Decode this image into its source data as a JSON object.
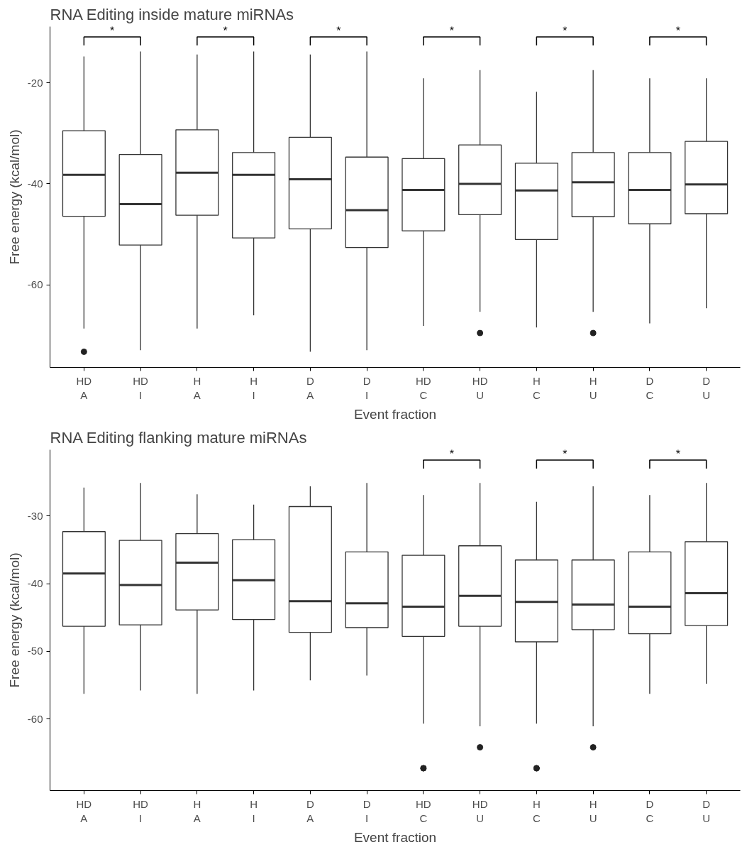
{
  "chart_data": [
    {
      "type": "box",
      "title": "RNA Editing inside mature miRNAs",
      "xlabel": "Event fraction",
      "ylabel": "Free energy (kcal/mol)",
      "categories": [
        "HD\nA",
        "HD\nI",
        "H\nA",
        "H\nI",
        "D\nA",
        "D\nI",
        "HD\nC",
        "HD\nU",
        "H\nC",
        "H\nU",
        "D\nC",
        "D\nU"
      ],
      "boxes": [
        {
          "low": -68.6,
          "q1": -46.4,
          "median": -38.2,
          "q3": -29.5,
          "high": -14.8,
          "outliers": [
            -73.2
          ]
        },
        {
          "low": -72.9,
          "q1": -52.1,
          "median": -44.0,
          "q3": -34.2,
          "high": -13.8
        },
        {
          "low": -68.6,
          "q1": -46.2,
          "median": -37.8,
          "q3": -29.3,
          "high": -14.4
        },
        {
          "low": -66.0,
          "q1": -50.7,
          "median": -38.2,
          "q3": -33.8,
          "high": -13.8
        },
        {
          "low": -73.2,
          "q1": -48.9,
          "median": -39.1,
          "q3": -30.8,
          "high": -14.4
        },
        {
          "low": -72.9,
          "q1": -52.6,
          "median": -45.2,
          "q3": -34.7,
          "high": -13.8
        },
        {
          "low": -68.1,
          "q1": -49.3,
          "median": -41.2,
          "q3": -35.0,
          "high": -19.1
        },
        {
          "low": -65.3,
          "q1": -46.1,
          "median": -40.0,
          "q3": -32.3,
          "high": -17.5,
          "outliers": [
            -69.5
          ]
        },
        {
          "low": -68.4,
          "q1": -51.0,
          "median": -41.3,
          "q3": -35.9,
          "high": -21.8
        },
        {
          "low": -65.3,
          "q1": -46.5,
          "median": -39.7,
          "q3": -33.8,
          "high": -17.5,
          "outliers": [
            -69.5
          ]
        },
        {
          "low": -67.6,
          "q1": -47.9,
          "median": -41.2,
          "q3": -33.8,
          "high": -19.1
        },
        {
          "low": -64.6,
          "q1": -45.9,
          "median": -40.1,
          "q3": -31.6,
          "high": -19.1
        }
      ],
      "ylim": [
        -76.3,
        -8.9
      ],
      "yticks": [
        -20,
        -40,
        -60
      ],
      "grid": false,
      "annotations": [
        "*",
        "*",
        "*",
        "*",
        "*",
        "*"
      ]
    },
    {
      "type": "box",
      "title": "RNA Editing flanking mature miRNAs",
      "xlabel": "Event fraction",
      "ylabel": "Free energy (kcal/mol)",
      "categories": [
        "HD\nA",
        "HD\nI",
        "H\nA",
        "H\nI",
        "D\nA",
        "D\nI",
        "HD\nC",
        "HD\nU",
        "H\nC",
        "H\nU",
        "D\nC",
        "D\nU"
      ],
      "boxes": [
        {
          "low": -56.3,
          "q1": -46.3,
          "median": -38.5,
          "q3": -32.3,
          "high": -25.8
        },
        {
          "low": -55.8,
          "q1": -46.1,
          "median": -40.2,
          "q3": -33.6,
          "high": -25.1
        },
        {
          "low": -56.3,
          "q1": -43.9,
          "median": -36.9,
          "q3": -32.6,
          "high": -26.8
        },
        {
          "low": -55.8,
          "q1": -45.3,
          "median": -39.5,
          "q3": -33.5,
          "high": -28.3
        },
        {
          "low": -54.3,
          "q1": -47.2,
          "median": -42.6,
          "q3": -28.6,
          "high": -25.6
        },
        {
          "low": -53.6,
          "q1": -46.5,
          "median": -42.9,
          "q3": -35.3,
          "high": -25.1
        },
        {
          "low": -60.7,
          "q1": -47.8,
          "median": -43.4,
          "q3": -35.8,
          "high": -26.9,
          "outliers": [
            -67.3,
            -67.3
          ]
        },
        {
          "low": -61.1,
          "q1": -46.3,
          "median": -41.8,
          "q3": -34.4,
          "high": -25.1,
          "outliers": [
            -64.2
          ]
        },
        {
          "low": -60.7,
          "q1": -48.6,
          "median": -42.7,
          "q3": -36.5,
          "high": -27.9,
          "outliers": [
            -67.3,
            -67.3
          ]
        },
        {
          "low": -61.1,
          "q1": -46.8,
          "median": -43.1,
          "q3": -36.5,
          "high": -25.6,
          "outliers": [
            -64.2
          ]
        },
        {
          "low": -56.3,
          "q1": -47.4,
          "median": -43.4,
          "q3": -35.3,
          "high": -26.9
        },
        {
          "low": -54.8,
          "q1": -46.2,
          "median": -41.4,
          "q3": -33.8,
          "high": -25.1
        }
      ],
      "ylim": [
        -70.6,
        -20.2
      ],
      "yticks": [
        -30,
        -40,
        -50,
        -60
      ],
      "grid": false,
      "annotations": [
        "*",
        "*",
        "*"
      ]
    }
  ]
}
